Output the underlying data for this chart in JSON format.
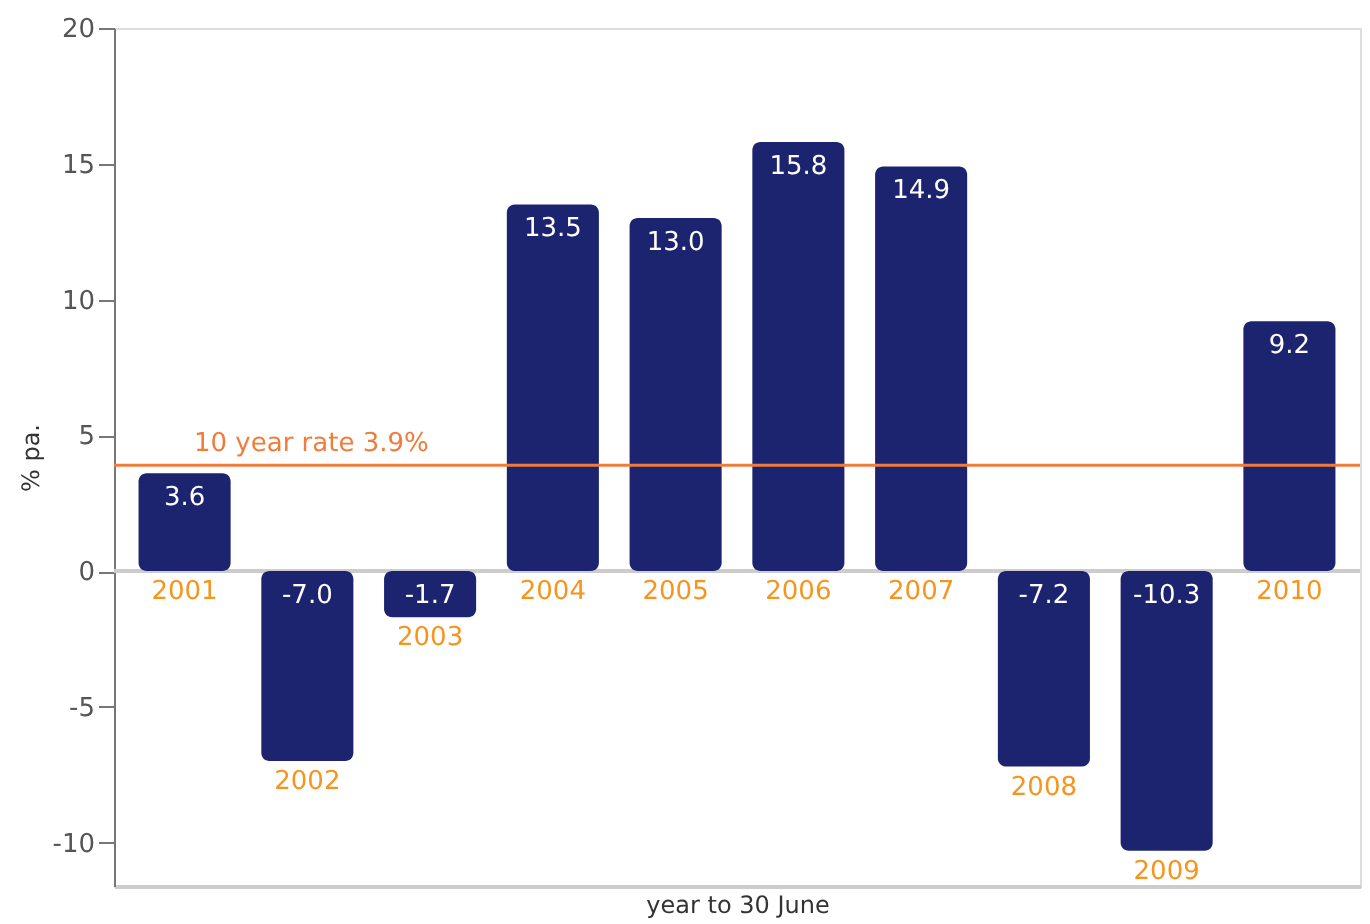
{
  "chart_data": {
    "type": "bar",
    "xlabel": "year to 30 June",
    "ylabel": "% pa.",
    "categories": [
      "2001",
      "2002",
      "2003",
      "2004",
      "2005",
      "2006",
      "2007",
      "2008",
      "2009",
      "2010"
    ],
    "values": [
      3.6,
      -7.0,
      -1.7,
      13.5,
      13.0,
      15.8,
      14.9,
      -7.2,
      -10.3,
      9.2
    ],
    "color": "#1c2470",
    "value_labels": [
      "3.6",
      "-7.0",
      "-1.7",
      "13.5",
      "13.0",
      "15.8",
      "14.9",
      "-7.2",
      "-10.3",
      "9.2"
    ],
    "ylim": [
      -11.6,
      20
    ],
    "yticks": [
      -10,
      -5,
      0,
      5,
      10,
      15,
      20
    ],
    "grid": false,
    "ref_lines": [
      {
        "axis": "y",
        "value": 3.9,
        "label": "10 year rate 3.9%",
        "color": "#f07c3c"
      }
    ]
  }
}
